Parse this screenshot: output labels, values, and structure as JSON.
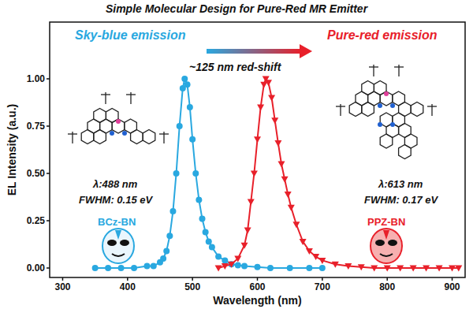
{
  "chart_data": {
    "type": "line",
    "title": "Simple Molecular Design for Pure-Red MR Emitter",
    "x_label": "Wavelength (nm)",
    "y_label": "EL Intensity (a.u.)",
    "xlim": [
      280,
      920
    ],
    "xticks": [
      300,
      400,
      500,
      600,
      700,
      800,
      900
    ],
    "ylim": [
      -0.05,
      1.3
    ],
    "yticks": [
      {
        "value": 0,
        "label": "0.00"
      },
      {
        "value": 0.25,
        "label": "0.25"
      },
      {
        "value": 0.5,
        "label": "0.50"
      },
      {
        "value": 0.75,
        "label": "0.75"
      },
      {
        "value": 1,
        "label": "1.00"
      }
    ],
    "grid": false,
    "annotations": [
      "Sky-blue emission",
      "~125 nm red-shift",
      "Pure-red emission"
    ],
    "series": [
      {
        "name": "BCz-BN",
        "color": "#29a8e0",
        "marker": "circle",
        "line_style": "solid",
        "annotations": [
          "λ:488 nm",
          "FWHM: 0.15 eV"
        ],
        "x": [
          350,
          370,
          390,
          410,
          430,
          440,
          450,
          455,
          460,
          465,
          470,
          475,
          480,
          485,
          488,
          492,
          496,
          500,
          505,
          510,
          515,
          520,
          525,
          530,
          540,
          550,
          560,
          570,
          580,
          600,
          620,
          650,
          680,
          700
        ],
        "values": [
          0,
          0,
          0,
          0,
          0.01,
          0.01,
          0.03,
          0.05,
          0.09,
          0.17,
          0.3,
          0.5,
          0.75,
          0.95,
          1.0,
          0.97,
          0.85,
          0.68,
          0.5,
          0.36,
          0.26,
          0.19,
          0.14,
          0.11,
          0.06,
          0.04,
          0.02,
          0.015,
          0.01,
          0.005,
          0,
          0,
          0,
          0
        ]
      },
      {
        "name": "PPZ-BN",
        "color": "#e8202a",
        "marker": "triangle-down",
        "line_style": "solid",
        "annotations": [
          "λ:613 nm",
          "FWHM: 0.17 eV"
        ],
        "x": [
          540,
          550,
          560,
          570,
          580,
          585,
          590,
          595,
          600,
          605,
          610,
          613,
          617,
          622,
          627,
          632,
          637,
          642,
          647,
          652,
          660,
          670,
          680,
          690,
          700,
          720,
          740,
          760,
          780,
          800,
          820,
          840,
          860,
          880,
          900,
          910
        ],
        "values": [
          0,
          0.01,
          0.02,
          0.05,
          0.12,
          0.2,
          0.35,
          0.5,
          0.68,
          0.85,
          0.97,
          1.0,
          0.98,
          0.9,
          0.78,
          0.66,
          0.55,
          0.47,
          0.39,
          0.32,
          0.23,
          0.14,
          0.09,
          0.06,
          0.04,
          0.02,
          0.01,
          0.005,
          0,
          0,
          0,
          0,
          0,
          0,
          0,
          0
        ]
      }
    ]
  }
}
